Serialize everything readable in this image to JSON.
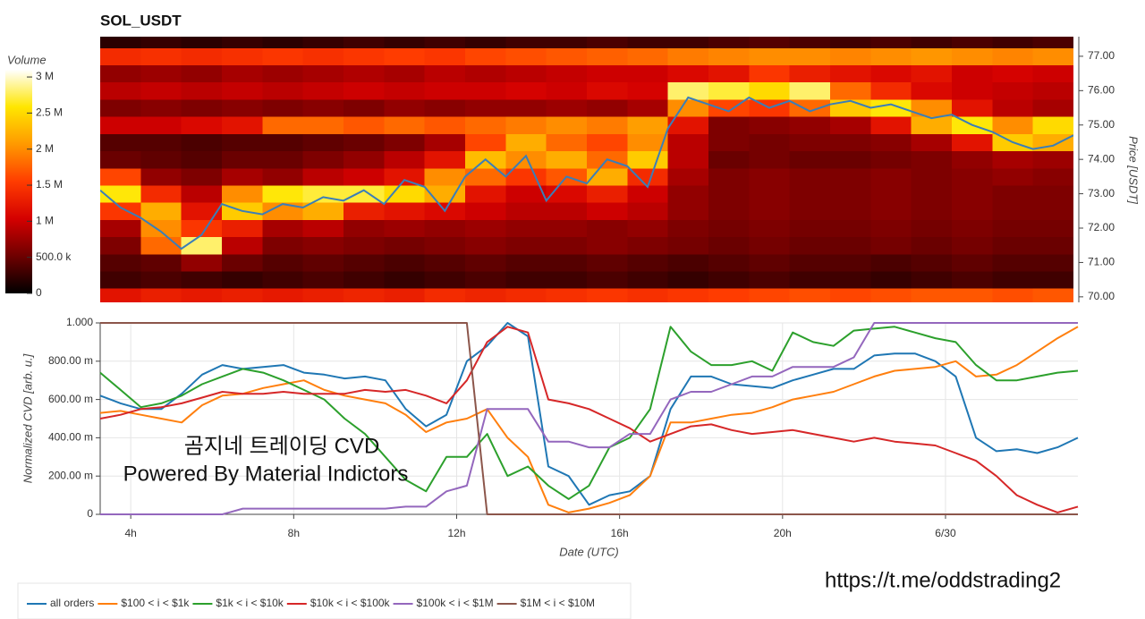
{
  "chart_data": [
    {
      "type": "heatmap",
      "title": "SOL_USDT",
      "y_label": "Price [USDT]",
      "colorbar_title": "Volume",
      "colorscale": [
        "#000000",
        "#6e0000",
        "#d40000",
        "#ff3c00",
        "#ff9900",
        "#ffe600",
        "#ffffff"
      ],
      "colorbar_lim": [
        0,
        3100000
      ],
      "colorbar_ticks": [
        0,
        {
          "value": 500000,
          "label": "500.0 k"
        },
        {
          "value": 1000000,
          "label": "1 M"
        },
        {
          "value": 1500000,
          "label": "1.5 M"
        },
        {
          "value": 2000000,
          "label": "2 M"
        },
        {
          "value": 2500000,
          "label": "2.5 M"
        },
        {
          "value": 3000000,
          "label": "3 M"
        }
      ],
      "xlim": [
        3.25,
        27.25
      ],
      "ylim": [
        69.84,
        77.57
      ],
      "yticks": [
        {
          "value": 70,
          "label": "70.00"
        },
        {
          "value": 71,
          "label": "71.00"
        },
        {
          "value": 72,
          "label": "72.00"
        },
        {
          "value": 73,
          "label": "73.00"
        },
        {
          "value": 74,
          "label": "74.00"
        },
        {
          "value": 75,
          "label": "75.00"
        },
        {
          "value": 76,
          "label": "76.00"
        },
        {
          "value": 77,
          "label": "77.00"
        }
      ],
      "x_bins": [
        3.25,
        4.25,
        5.25,
        6.25,
        7.25,
        8.25,
        9.25,
        10.25,
        11.25,
        12.25,
        13.25,
        14.25,
        15.25,
        16.25,
        17.25,
        18.25,
        19.25,
        20.25,
        21.25,
        22.25,
        23.25,
        24.25,
        25.25,
        26.25,
        27.25
      ],
      "y_bins": [
        69.75,
        70.25,
        70.75,
        71.25,
        71.75,
        72.25,
        72.75,
        73.25,
        73.75,
        74.25,
        74.75,
        75.25,
        75.75,
        76.25,
        76.75,
        77.25,
        77.75
      ],
      "z": [
        [
          1200000,
          1300000,
          1250000,
          1300000,
          1250000,
          1300000,
          1350000,
          1300000,
          1400000,
          1350000,
          1400000,
          1450000,
          1500000,
          1450000,
          1500000,
          1550000,
          1600000,
          1650000,
          1600000,
          1650000,
          1700000,
          1700000,
          1650000,
          1700000
        ],
        [
          300000,
          350000,
          300000,
          250000,
          300000,
          350000,
          300000,
          250000,
          300000,
          350000,
          300000,
          300000,
          350000,
          300000,
          250000,
          300000,
          350000,
          300000,
          300000,
          250000,
          300000,
          350000,
          300000,
          300000
        ],
        [
          400000,
          450000,
          700000,
          500000,
          400000,
          450000,
          400000,
          350000,
          400000,
          450000,
          400000,
          400000,
          450000,
          400000,
          350000,
          400000,
          450000,
          400000,
          400000,
          350000,
          400000,
          450000,
          400000,
          400000
        ],
        [
          600000,
          1800000,
          2800000,
          900000,
          600000,
          650000,
          600000,
          550000,
          600000,
          650000,
          600000,
          600000,
          650000,
          600000,
          550000,
          500000,
          550000,
          500000,
          500000,
          550000,
          500000,
          550000,
          500000,
          500000
        ],
        [
          800000,
          2000000,
          1500000,
          1300000,
          800000,
          900000,
          700000,
          750000,
          700000,
          750000,
          700000,
          700000,
          650000,
          700000,
          600000,
          550000,
          600000,
          550000,
          550000,
          600000,
          550000,
          600000,
          550000,
          550000
        ],
        [
          1500000,
          2200000,
          1200000,
          2400000,
          2000000,
          2200000,
          1300000,
          1200000,
          1100000,
          1000000,
          900000,
          900000,
          1000000,
          900000,
          700000,
          600000,
          650000,
          600000,
          600000,
          650000,
          600000,
          650000,
          600000,
          600000
        ],
        [
          2600000,
          1400000,
          900000,
          2000000,
          2600000,
          2700000,
          2700000,
          2500000,
          2200000,
          1200000,
          1000000,
          1100000,
          1300000,
          1000000,
          700000,
          600000,
          650000,
          600000,
          600000,
          650000,
          600000,
          650000,
          600000,
          600000
        ],
        [
          1600000,
          700000,
          600000,
          800000,
          700000,
          900000,
          1000000,
          1200000,
          2000000,
          1800000,
          1500000,
          1700000,
          2200000,
          1400000,
          800000,
          600000,
          650000,
          600000,
          600000,
          650000,
          600000,
          650000,
          700000,
          650000
        ],
        [
          500000,
          450000,
          400000,
          500000,
          500000,
          600000,
          700000,
          900000,
          1200000,
          2300000,
          2000000,
          2200000,
          1800000,
          2400000,
          900000,
          500000,
          550000,
          500000,
          500000,
          550000,
          600000,
          700000,
          800000,
          750000
        ],
        [
          400000,
          400000,
          350000,
          400000,
          400000,
          450000,
          500000,
          600000,
          800000,
          1600000,
          2200000,
          1800000,
          1600000,
          2000000,
          900000,
          600000,
          550000,
          600000,
          600000,
          650000,
          800000,
          1200000,
          2400000,
          2200000
        ],
        [
          1000000,
          1000000,
          1100000,
          1200000,
          1800000,
          1800000,
          1700000,
          1800000,
          1700000,
          1800000,
          1900000,
          2000000,
          1900000,
          2100000,
          1200000,
          600000,
          650000,
          700000,
          800000,
          1200000,
          2200000,
          2600000,
          2000000,
          2500000
        ],
        [
          600000,
          650000,
          600000,
          650000,
          600000,
          650000,
          600000,
          700000,
          650000,
          700000,
          700000,
          750000,
          700000,
          800000,
          2000000,
          1600000,
          1500000,
          1800000,
          2400000,
          2600000,
          2000000,
          1200000,
          900000,
          800000
        ],
        [
          900000,
          950000,
          900000,
          950000,
          900000,
          950000,
          1000000,
          950000,
          1000000,
          1000000,
          1050000,
          1000000,
          1100000,
          1050000,
          2800000,
          2700000,
          2500000,
          2800000,
          1800000,
          1400000,
          1100000,
          1000000,
          950000,
          900000
        ],
        [
          700000,
          750000,
          700000,
          800000,
          750000,
          800000,
          850000,
          800000,
          900000,
          850000,
          900000,
          950000,
          1000000,
          1000000,
          1100000,
          1200000,
          1500000,
          1300000,
          1200000,
          1100000,
          1200000,
          1000000,
          1050000,
          1000000
        ],
        [
          1400000,
          1450000,
          1400000,
          1450000,
          1500000,
          1450000,
          1500000,
          1550000,
          1500000,
          1600000,
          1650000,
          1700000,
          1750000,
          1800000,
          1900000,
          1950000,
          2000000,
          2000000,
          1950000,
          2000000,
          2050000,
          2000000,
          1950000,
          2000000
        ],
        [
          200000,
          250000,
          200000,
          250000,
          200000,
          250000,
          300000,
          250000,
          300000,
          250000,
          300000,
          300000,
          350000,
          300000,
          300000,
          350000,
          400000,
          350000,
          300000,
          350000,
          300000,
          350000,
          300000,
          350000
        ]
      ],
      "line": {
        "color": "#3a7eb8",
        "x": [
          3.25,
          3.75,
          4.25,
          4.75,
          5.25,
          5.75,
          6.25,
          6.75,
          7.25,
          7.75,
          8.25,
          8.75,
          9.25,
          9.75,
          10.25,
          10.75,
          11.25,
          11.75,
          12.25,
          12.75,
          13.25,
          13.75,
          14.25,
          14.75,
          15.25,
          15.75,
          16.25,
          16.75,
          17.25,
          17.75,
          18.25,
          18.75,
          19.25,
          19.75,
          20.25,
          20.75,
          21.25,
          21.75,
          22.25,
          22.75,
          23.25,
          23.75,
          24.25,
          24.75,
          25.25,
          25.75,
          26.25,
          26.75,
          27.25
        ],
        "values": [
          73.1,
          72.6,
          72.3,
          71.9,
          71.4,
          71.8,
          72.7,
          72.5,
          72.4,
          72.7,
          72.6,
          72.9,
          72.8,
          73.1,
          72.7,
          73.4,
          73.2,
          72.5,
          73.5,
          74.0,
          73.5,
          74.1,
          72.8,
          73.5,
          73.3,
          74.0,
          73.8,
          73.2,
          74.9,
          75.8,
          75.6,
          75.4,
          75.8,
          75.5,
          75.7,
          75.4,
          75.6,
          75.7,
          75.5,
          75.6,
          75.4,
          75.2,
          75.3,
          75.0,
          74.8,
          74.5,
          74.3,
          74.4,
          74.7
        ]
      }
    },
    {
      "type": "line",
      "x_label": "Date (UTC)",
      "y_label": "Normalized CVD [arb. u.]",
      "grid": true,
      "xlim": [
        3.25,
        27.25
      ],
      "ylim": [
        0,
        1
      ],
      "xticks": [
        {
          "value": 4,
          "label": "4h"
        },
        {
          "value": 8,
          "label": "8h"
        },
        {
          "value": 12,
          "label": "12h"
        },
        {
          "value": 16,
          "label": "16h"
        },
        {
          "value": 20,
          "label": "20h"
        },
        {
          "value": 24,
          "label": "6/30"
        }
      ],
      "yticks": [
        0,
        {
          "value": 0.2,
          "label": "200.00 m"
        },
        {
          "value": 0.4,
          "label": "400.00 m"
        },
        {
          "value": 0.6,
          "label": "600.00 m"
        },
        {
          "value": 0.8,
          "label": "800.00 m"
        },
        {
          "value": 1,
          "label": "1.000"
        }
      ],
      "x": [
        3.25,
        3.75,
        4.25,
        4.75,
        5.25,
        5.75,
        6.25,
        6.75,
        7.25,
        7.75,
        8.25,
        8.75,
        9.25,
        9.75,
        10.25,
        10.75,
        11.25,
        11.75,
        12.25,
        12.75,
        13.25,
        13.75,
        14.25,
        14.75,
        15.25,
        15.75,
        16.25,
        16.75,
        17.25,
        17.75,
        18.25,
        18.75,
        19.25,
        19.75,
        20.25,
        20.75,
        21.25,
        21.75,
        22.25,
        22.75,
        23.25,
        23.75,
        24.25,
        24.75,
        25.25,
        25.75,
        26.25,
        26.75,
        27.25
      ],
      "series": [
        {
          "name": "all orders",
          "color": "#1f77b4",
          "values": [
            0.62,
            0.58,
            0.55,
            0.55,
            0.63,
            0.73,
            0.78,
            0.76,
            0.77,
            0.78,
            0.74,
            0.73,
            0.71,
            0.72,
            0.7,
            0.55,
            0.46,
            0.52,
            0.8,
            0.88,
            1.0,
            0.93,
            0.25,
            0.2,
            0.05,
            0.1,
            0.12,
            0.2,
            0.55,
            0.72,
            0.72,
            0.68,
            0.67,
            0.66,
            0.7,
            0.73,
            0.76,
            0.76,
            0.83,
            0.84,
            0.84,
            0.8,
            0.72,
            0.4,
            0.33,
            0.34,
            0.32,
            0.35,
            0.4
          ]
        },
        {
          "name": "$100 < i < $1k",
          "color": "#ff7f0e",
          "values": [
            0.53,
            0.54,
            0.52,
            0.5,
            0.48,
            0.57,
            0.62,
            0.63,
            0.66,
            0.68,
            0.7,
            0.65,
            0.62,
            0.6,
            0.58,
            0.52,
            0.43,
            0.48,
            0.5,
            0.55,
            0.4,
            0.3,
            0.05,
            0.01,
            0.03,
            0.06,
            0.1,
            0.2,
            0.48,
            0.48,
            0.5,
            0.52,
            0.53,
            0.56,
            0.6,
            0.62,
            0.64,
            0.68,
            0.72,
            0.75,
            0.76,
            0.77,
            0.8,
            0.72,
            0.73,
            0.78,
            0.85,
            0.92,
            0.98
          ]
        },
        {
          "name": "$1k < i < $10k",
          "color": "#2ca02c",
          "values": [
            0.74,
            0.65,
            0.56,
            0.58,
            0.62,
            0.68,
            0.72,
            0.76,
            0.74,
            0.7,
            0.65,
            0.6,
            0.5,
            0.42,
            0.3,
            0.18,
            0.12,
            0.3,
            0.3,
            0.42,
            0.2,
            0.25,
            0.15,
            0.08,
            0.15,
            0.35,
            0.4,
            0.55,
            0.98,
            0.85,
            0.78,
            0.78,
            0.8,
            0.75,
            0.95,
            0.9,
            0.88,
            0.96,
            0.97,
            0.98,
            0.95,
            0.92,
            0.9,
            0.78,
            0.7,
            0.7,
            0.72,
            0.74,
            0.75
          ]
        },
        {
          "name": "$10k < i < $100k",
          "color": "#d62728",
          "values": [
            0.5,
            0.52,
            0.55,
            0.56,
            0.58,
            0.61,
            0.64,
            0.63,
            0.63,
            0.64,
            0.63,
            0.63,
            0.63,
            0.65,
            0.64,
            0.65,
            0.62,
            0.58,
            0.7,
            0.9,
            0.98,
            0.95,
            0.6,
            0.58,
            0.55,
            0.5,
            0.45,
            0.38,
            0.42,
            0.46,
            0.47,
            0.44,
            0.42,
            0.43,
            0.44,
            0.42,
            0.4,
            0.38,
            0.4,
            0.38,
            0.37,
            0.36,
            0.32,
            0.28,
            0.2,
            0.1,
            0.05,
            0.01,
            0.04
          ]
        },
        {
          "name": "$100k < i < $1M",
          "color": "#9467bd",
          "values": [
            0,
            0,
            0,
            0,
            0,
            0,
            0,
            0.03,
            0.03,
            0.03,
            0.03,
            0.03,
            0.03,
            0.03,
            0.03,
            0.04,
            0.04,
            0.12,
            0.15,
            0.55,
            0.55,
            0.55,
            0.38,
            0.38,
            0.35,
            0.35,
            0.42,
            0.42,
            0.6,
            0.64,
            0.64,
            0.68,
            0.72,
            0.72,
            0.77,
            0.77,
            0.77,
            0.82,
            1,
            1,
            1,
            1,
            1,
            1,
            1,
            1,
            1,
            1,
            1
          ]
        },
        {
          "name": "$1M < i < $10M",
          "color": "#8c564b",
          "values": [
            1,
            1,
            1,
            1,
            1,
            1,
            1,
            1,
            1,
            1,
            1,
            1,
            1,
            1,
            1,
            1,
            1,
            1,
            1,
            0,
            0,
            0,
            0,
            0,
            0,
            0,
            0,
            0,
            0,
            0,
            0,
            0,
            0,
            0,
            0,
            0,
            0,
            0,
            0,
            0,
            0,
            0,
            0,
            0,
            0,
            0,
            0,
            0,
            0
          ]
        }
      ]
    }
  ],
  "annotations": [
    "곰지네 트레이딩 CVD",
    "Powered By Material Indictors",
    "https://t.me/oddstrading2"
  ]
}
